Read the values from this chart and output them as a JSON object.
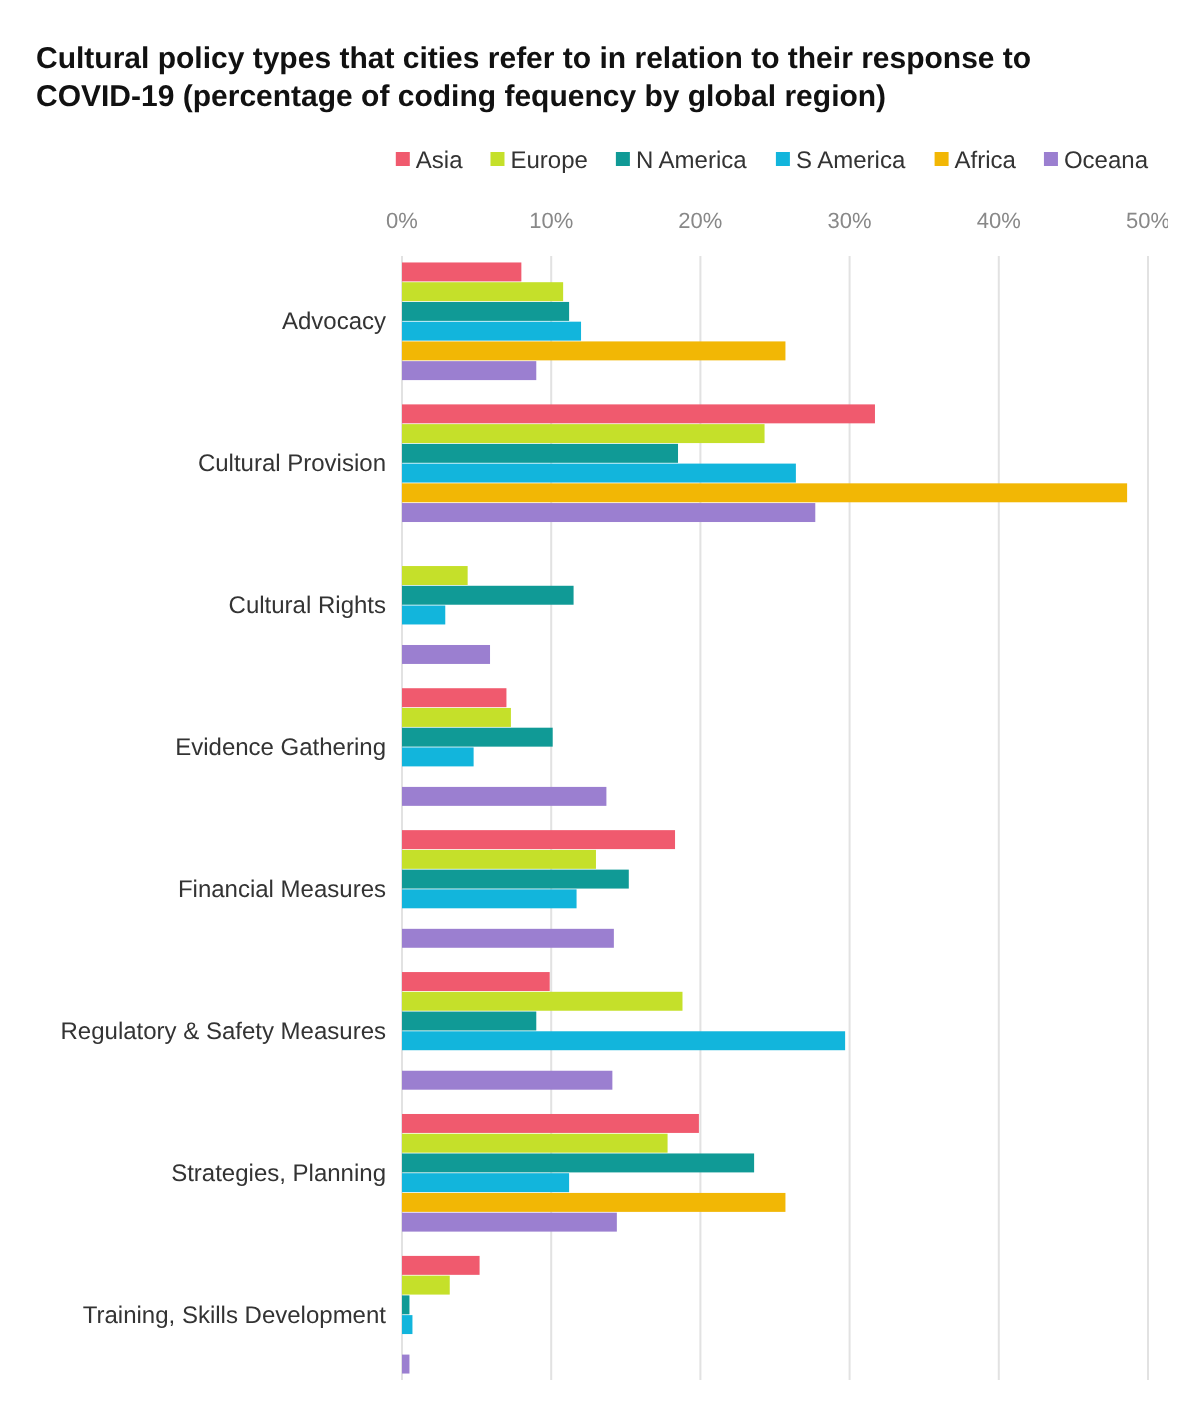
{
  "chart_data": {
    "type": "bar",
    "orientation": "horizontal",
    "title": "Cultural policy types that cities refer to in relation to their response to COVID-19 (percentage of coding fequency by global region)",
    "categories": [
      "Advocacy",
      "Cultural Provision",
      "Cultural Rights",
      "Evidence Gathering",
      "Financial Measures",
      "Regulatory & Safety Measures",
      "Strategies, Planning",
      "Training, Skills Development"
    ],
    "series": [
      {
        "name": "Asia",
        "color": "#f05a6e",
        "values": [
          8.0,
          31.7,
          null,
          7.0,
          18.3,
          9.9,
          19.9,
          5.2
        ]
      },
      {
        "name": "Europe",
        "color": "#c5e02a",
        "values": [
          10.8,
          24.3,
          4.4,
          7.3,
          13.0,
          18.8,
          17.8,
          3.2
        ]
      },
      {
        "name": "N America",
        "color": "#109a96",
        "values": [
          11.2,
          18.5,
          11.5,
          10.1,
          15.2,
          9.0,
          23.6,
          0.5
        ]
      },
      {
        "name": "S America",
        "color": "#12b5dc",
        "values": [
          12.0,
          26.4,
          2.9,
          4.8,
          11.7,
          29.7,
          11.2,
          0.7
        ]
      },
      {
        "name": "Africa",
        "color": "#f2b705",
        "values": [
          25.7,
          48.6,
          null,
          null,
          null,
          null,
          25.7,
          null
        ]
      },
      {
        "name": "Oceana",
        "color": "#9b7fd0",
        "values": [
          9.0,
          27.7,
          5.9,
          13.7,
          14.2,
          14.1,
          14.4,
          0.5
        ]
      }
    ],
    "xlim": [
      0,
      50
    ],
    "xticks": [
      {
        "value": 0,
        "label": "0%"
      },
      {
        "value": 10,
        "label": "10%"
      },
      {
        "value": 20,
        "label": "20%"
      },
      {
        "value": 30,
        "label": "30%"
      },
      {
        "value": 40,
        "label": "40%"
      },
      {
        "value": 50,
        "label": "50%"
      }
    ],
    "grid": "x",
    "legend": "top"
  }
}
